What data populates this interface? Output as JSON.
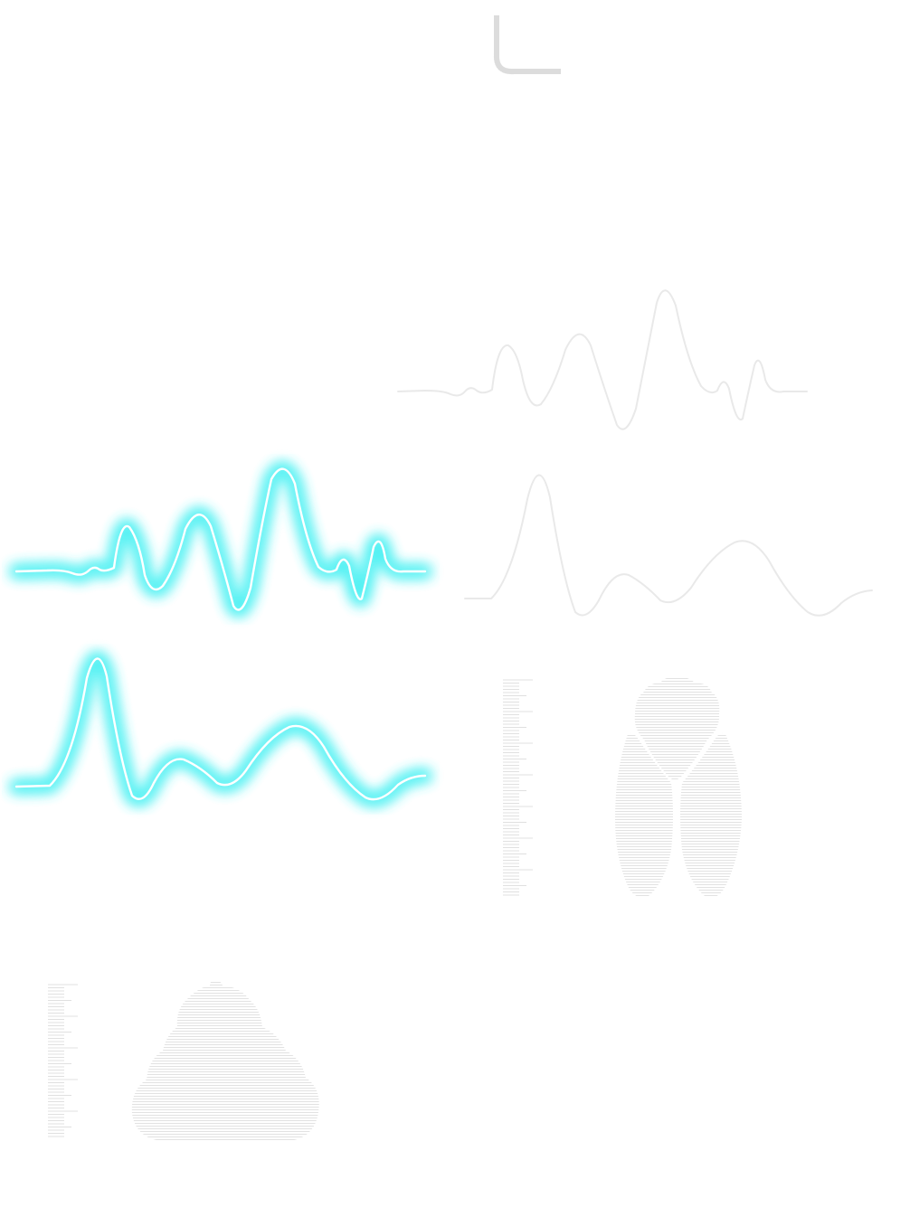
{
  "canvas": {
    "background": "#ffffff"
  },
  "colors": {
    "glow": "#3ff0f2",
    "glow_core": "#ffffff",
    "faint_line": "#e9e9e9",
    "hatch": "#e4e4e4",
    "corner_mark": "#dcdcdc"
  },
  "icons": [
    "corner-bracket-icon",
    "wave-a-glow",
    "wave-b-glow",
    "wave-a-faint",
    "wave-b-faint",
    "cicada-silhouette-icon",
    "mound-silhouette-icon"
  ]
}
